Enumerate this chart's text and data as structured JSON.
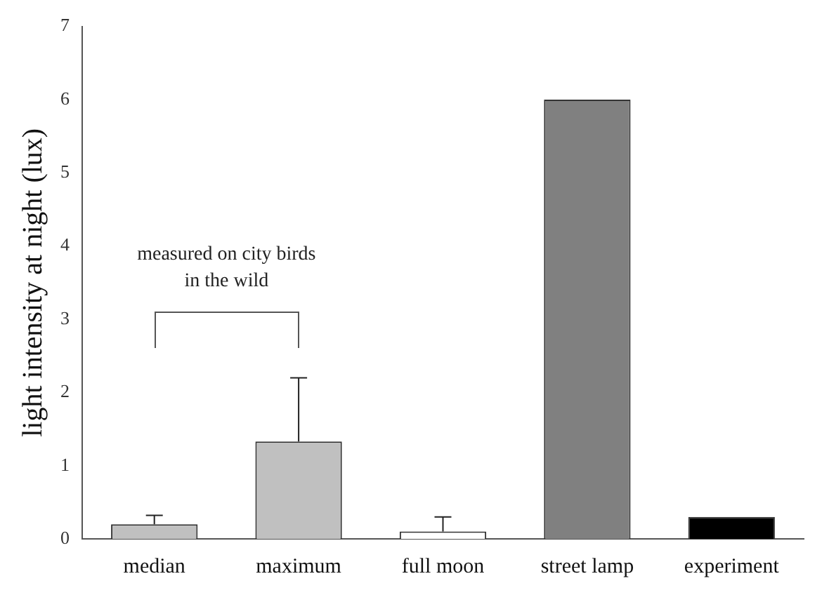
{
  "chart_data": {
    "type": "bar",
    "ylabel": "light intensity at night (lux)",
    "categories": [
      "median",
      "maximum",
      "full moon",
      "street lamp",
      "experiment"
    ],
    "values": [
      0.2,
      1.33,
      0.1,
      6,
      0.3
    ],
    "colors": [
      "#c0c0c0",
      "#c0c0c0",
      "#ffffff",
      "#808080",
      "#000000"
    ],
    "errors": [
      [
        0.2,
        0.32
      ],
      [
        1.33,
        2.2
      ],
      [
        0.1,
        0.3
      ],
      null,
      null
    ],
    "ylim": [
      0,
      7
    ],
    "yticks": [
      0,
      1,
      2,
      3,
      4,
      5,
      6,
      7
    ],
    "grid": false,
    "legend": false,
    "annotations": [
      "measured on city birds in the wild"
    ]
  }
}
